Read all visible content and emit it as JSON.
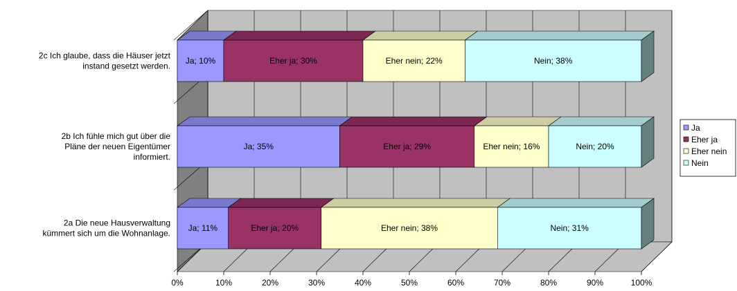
{
  "chart_data": {
    "type": "bar",
    "orientation": "horizontal",
    "stacked": "percent",
    "three_d": true,
    "categories": [
      [
        "2c Ich glaube, dass die Häuser jetzt",
        "instand gesetzt werden."
      ],
      [
        "2b Ich fühle mich gut über die",
        "Pläne der neuen Eigentümer",
        "informiert."
      ],
      [
        "2a Die neue Hausverwaltung",
        "kümmert sich um die Wohnanlage."
      ]
    ],
    "series": [
      {
        "name": "Ja",
        "values": [
          10,
          35,
          11
        ],
        "labels": [
          "Ja; 10%",
          "Ja; 35%",
          "Ja; 11%"
        ],
        "color": "#9999ff"
      },
      {
        "name": "Eher ja",
        "values": [
          30,
          29,
          20
        ],
        "labels": [
          "Eher ja; 30%",
          "Eher ja; 29%",
          "Eher ja; 20%"
        ],
        "color": "#993366"
      },
      {
        "name": "Eher nein",
        "values": [
          22,
          16,
          38
        ],
        "labels": [
          "Eher nein; 22%",
          "Eher nein; 16%",
          "Eher nein; 38%"
        ],
        "color": "#ffffcc"
      },
      {
        "name": "Nein",
        "values": [
          38,
          20,
          31
        ],
        "labels": [
          "Nein; 38%",
          "Nein; 20%",
          "Nein; 31%"
        ],
        "color": "#ccffff"
      }
    ],
    "x_ticks": [
      "0%",
      "10%",
      "20%",
      "30%",
      "40%",
      "50%",
      "60%",
      "70%",
      "80%",
      "90%",
      "100%"
    ],
    "xlim": [
      0,
      100
    ],
    "grid": true,
    "legend_position": "right",
    "colors": {
      "wall": "#c0c0c0",
      "side_wall": "#808080",
      "floor": "#c0c0c0",
      "grid": "#000000"
    }
  }
}
